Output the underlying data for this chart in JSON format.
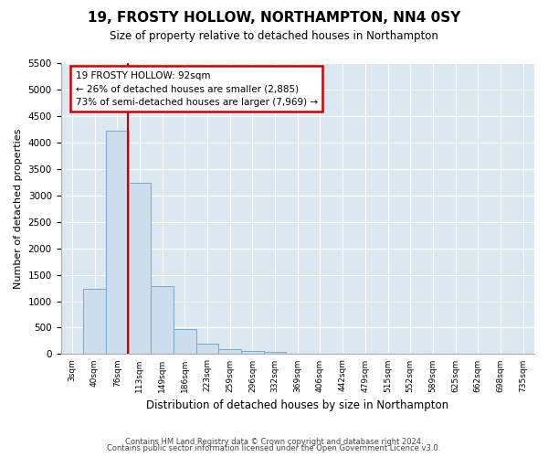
{
  "title": "19, FROSTY HOLLOW, NORTHAMPTON, NN4 0SY",
  "subtitle": "Size of property relative to detached houses in Northampton",
  "xlabel": "Distribution of detached houses by size in Northampton",
  "ylabel": "Number of detached properties",
  "footer_line1": "Contains HM Land Registry data © Crown copyright and database right 2024.",
  "footer_line2": "Contains public sector information licensed under the Open Government Licence v3.0.",
  "bar_color": "#ccdded",
  "bar_edge_color": "#7aaac8",
  "bg_color": "#dce8f0",
  "annotation_text": "19 FROSTY HOLLOW: 92sqm\n← 26% of detached houses are smaller (2,885)\n73% of semi-detached houses are larger (7,969) →",
  "vline_color": "#cc0000",
  "vline_x_index": 2.47,
  "ylim": [
    0,
    5500
  ],
  "yticks": [
    0,
    500,
    1000,
    1500,
    2000,
    2500,
    3000,
    3500,
    4000,
    4500,
    5000,
    5500
  ],
  "categories": [
    "3sqm",
    "40sqm",
    "76sqm",
    "113sqm",
    "149sqm",
    "186sqm",
    "223sqm",
    "259sqm",
    "296sqm",
    "332sqm",
    "369sqm",
    "406sqm",
    "442sqm",
    "479sqm",
    "515sqm",
    "552sqm",
    "589sqm",
    "625sqm",
    "662sqm",
    "698sqm",
    "735sqm"
  ],
  "values": [
    0,
    1230,
    4230,
    3230,
    1280,
    480,
    200,
    100,
    60,
    50,
    0,
    0,
    0,
    0,
    0,
    0,
    0,
    0,
    0,
    0,
    0
  ]
}
